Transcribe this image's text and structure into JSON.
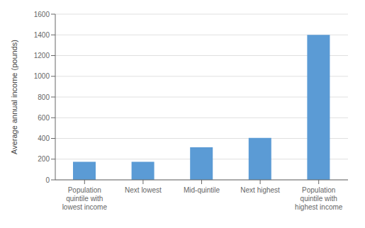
{
  "chart_data": {
    "type": "bar",
    "ylabel": "Average annual income (pounds)",
    "categories": [
      "Population\nquintile with\nlowest income",
      "Next lowest",
      "Mid-quintile",
      "Next highest",
      "Population\nquintile with\nhighest income"
    ],
    "values": [
      175,
      175,
      315,
      405,
      1400
    ],
    "color": "#5B9BD5",
    "ylim": [
      0,
      1600
    ],
    "yticks": [
      0,
      200,
      400,
      600,
      800,
      1000,
      1200,
      1400,
      1600
    ],
    "grid": true
  }
}
